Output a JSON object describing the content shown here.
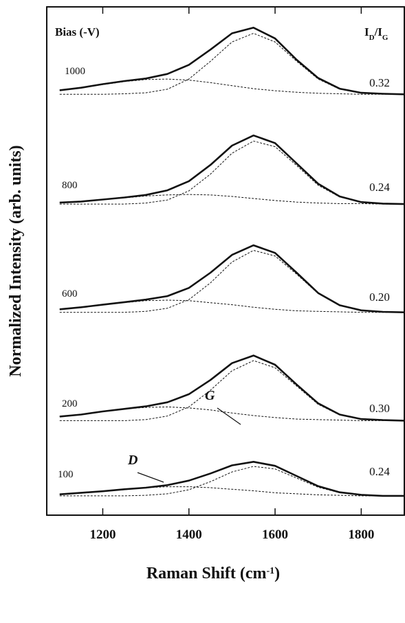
{
  "chart_data": {
    "type": "line",
    "y_label": "Normalized Intensity (arb. units)",
    "x_label": [
      "Raman Shift (cm",
      "-1",
      ")"
    ],
    "bias_header": "Bias (-V)",
    "ratio_header": [
      "I",
      "D",
      "/I",
      "G"
    ],
    "xlim": [
      1070,
      1900
    ],
    "xticks": [
      1200,
      1400,
      1600,
      1800
    ],
    "ylim": [
      0,
      100
    ],
    "x": [
      1100,
      1150,
      1200,
      1250,
      1300,
      1350,
      1400,
      1450,
      1500,
      1550,
      1600,
      1650,
      1700,
      1750,
      1800,
      1850,
      1900
    ],
    "series": [
      {
        "bias": "1000",
        "ratio": "0.32",
        "color": "#111111",
        "values": [
          83.6,
          84.1,
          84.8,
          85.4,
          85.9,
          86.8,
          88.6,
          91.6,
          94.8,
          95.9,
          93.8,
          89.6,
          86.0,
          83.9,
          83.1,
          82.9,
          82.8
        ],
        "d_band": [
          83.6,
          84.1,
          84.7,
          85.3,
          85.7,
          85.8,
          85.6,
          85.1,
          84.5,
          83.9,
          83.5,
          83.2,
          83.0,
          82.9,
          82.8,
          82.8,
          82.8
        ],
        "g_band": [
          82.8,
          82.8,
          82.8,
          82.9,
          83.1,
          83.8,
          85.8,
          89.3,
          93.1,
          94.8,
          93.1,
          89.3,
          85.8,
          83.8,
          83.1,
          82.9,
          82.8
        ]
      },
      {
        "bias": "800",
        "ratio": "0.24",
        "color": "#111111",
        "values": [
          61.5,
          61.7,
          62.1,
          62.5,
          63.0,
          63.9,
          65.7,
          68.9,
          72.7,
          74.7,
          73.2,
          69.2,
          65.2,
          62.7,
          61.6,
          61.3,
          61.2
        ],
        "d_band": [
          61.5,
          61.7,
          62.1,
          62.4,
          62.8,
          63.0,
          63.1,
          63.0,
          62.7,
          62.3,
          61.9,
          61.6,
          61.4,
          61.3,
          61.3,
          61.2,
          61.2
        ],
        "g_band": [
          61.2,
          61.2,
          61.2,
          61.2,
          61.4,
          62.0,
          63.8,
          67.1,
          71.2,
          73.6,
          72.5,
          68.8,
          64.9,
          62.6,
          61.6,
          61.3,
          61.2
        ]
      },
      {
        "bias": "600",
        "ratio": "0.20",
        "color": "#111111",
        "values": [
          40.5,
          40.9,
          41.4,
          41.9,
          42.4,
          43.1,
          44.7,
          47.7,
          51.2,
          53.1,
          51.6,
          47.7,
          43.7,
          41.3,
          40.3,
          40.0,
          39.9
        ],
        "d_band": [
          40.5,
          40.9,
          41.4,
          41.8,
          42.2,
          42.3,
          42.2,
          41.8,
          41.4,
          40.9,
          40.5,
          40.2,
          40.1,
          40.0,
          39.9,
          39.9,
          39.9
        ],
        "g_band": [
          39.9,
          39.9,
          39.9,
          39.9,
          40.1,
          40.7,
          42.4,
          45.7,
          49.8,
          52.1,
          51.0,
          47.4,
          43.6,
          41.2,
          40.3,
          40.0,
          39.9
        ]
      },
      {
        "bias": "200",
        "ratio": "0.30",
        "color": "#111111",
        "values": [
          19.4,
          19.8,
          20.4,
          20.9,
          21.4,
          22.2,
          23.8,
          26.6,
          29.9,
          31.4,
          29.6,
          25.7,
          22.0,
          19.8,
          18.9,
          18.7,
          18.6
        ],
        "d_band": [
          19.4,
          19.8,
          20.4,
          20.9,
          21.2,
          21.3,
          21.1,
          20.7,
          20.1,
          19.6,
          19.2,
          18.9,
          18.8,
          18.7,
          18.6,
          18.6,
          18.6
        ],
        "g_band": [
          18.6,
          18.6,
          18.6,
          18.6,
          18.8,
          19.5,
          21.3,
          24.6,
          28.4,
          30.4,
          29.0,
          25.4,
          21.8,
          19.7,
          18.9,
          18.7,
          18.6
        ]
      },
      {
        "bias": "100",
        "ratio": "0.24",
        "color": "#111111",
        "values": [
          4.1,
          4.4,
          4.7,
          5.1,
          5.4,
          5.9,
          6.8,
          8.2,
          9.8,
          10.5,
          9.7,
          7.7,
          5.7,
          4.5,
          4.0,
          3.8,
          3.8
        ],
        "d_band": [
          4.1,
          4.4,
          4.7,
          5.0,
          5.4,
          5.6,
          5.6,
          5.4,
          5.1,
          4.8,
          4.4,
          4.2,
          4.0,
          3.9,
          3.8,
          3.8,
          3.8
        ],
        "g_band": [
          3.8,
          3.8,
          3.8,
          3.8,
          3.9,
          4.2,
          5.0,
          6.6,
          8.5,
          9.6,
          9.1,
          7.3,
          5.5,
          4.4,
          4.0,
          3.8,
          3.8
        ]
      }
    ],
    "annotations": [
      {
        "text": "D"
      },
      {
        "text": "G"
      }
    ]
  }
}
